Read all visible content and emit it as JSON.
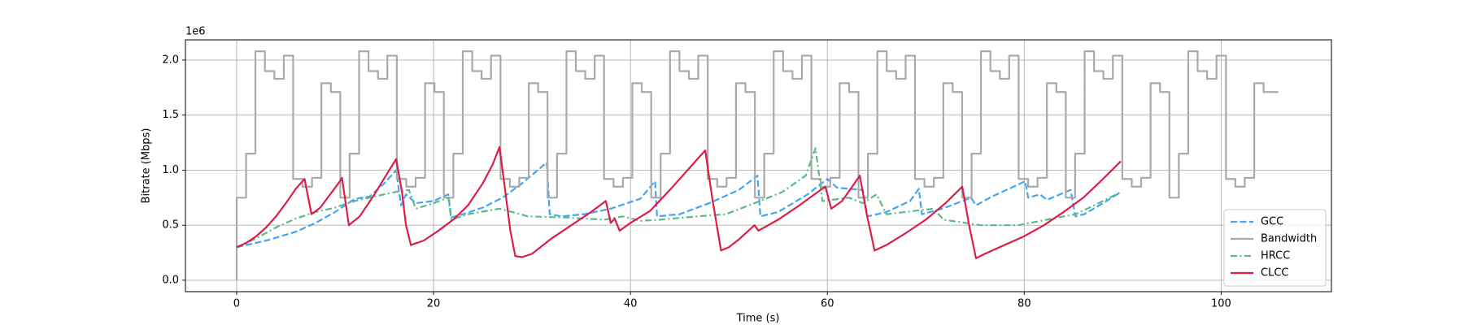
{
  "chart_data": {
    "type": "line",
    "xlabel": "Time (s)",
    "ylabel": "Bitrate (Mbps)",
    "y_offset_text": "1e6",
    "xlim": [
      -5.2,
      111.2
    ],
    "ylim": [
      -0.104,
      2.184
    ],
    "xticks": [
      0,
      20,
      40,
      60,
      80,
      100
    ],
    "yticks": [
      {
        "value": 0,
        "label": "0.0"
      },
      0.5,
      {
        "value": 1,
        "label": "1.0"
      },
      1.5,
      {
        "value": 2,
        "label": "2.0"
      }
    ],
    "grid": true,
    "legend": "lower right",
    "series": [
      {
        "name": "GCC",
        "color": "#42a5f5",
        "linestyle": "dashed",
        "x": [
          0,
          3,
          6,
          8,
          10,
          12,
          13.5,
          15,
          16.2,
          16.7,
          17.2,
          18.2,
          20,
          21.5,
          21.8,
          23,
          25,
          27,
          29,
          31.5,
          31.8,
          33,
          35.3,
          38,
          41,
          42.5,
          42.7,
          45,
          48,
          51,
          52.9,
          53.2,
          55,
          58,
          60,
          61,
          63.6,
          64.1,
          66,
          68.4,
          69.3,
          69.6,
          71.7,
          74.6,
          75.1,
          76.5,
          80.1,
          80.4,
          81.6,
          82.3,
          84.7,
          85.2,
          86.1,
          88,
          89.8
        ],
        "values": [
          0.3,
          0.36,
          0.44,
          0.52,
          0.62,
          0.74,
          0.76,
          0.88,
          1.0,
          0.68,
          0.78,
          0.7,
          0.72,
          0.78,
          0.57,
          0.6,
          0.66,
          0.75,
          0.88,
          1.07,
          0.6,
          0.58,
          0.6,
          0.65,
          0.74,
          0.9,
          0.58,
          0.6,
          0.7,
          0.82,
          0.95,
          0.58,
          0.62,
          0.78,
          0.92,
          0.84,
          0.82,
          0.58,
          0.62,
          0.72,
          0.83,
          0.6,
          0.65,
          0.75,
          0.68,
          0.75,
          0.9,
          0.75,
          0.78,
          0.73,
          0.82,
          0.58,
          0.6,
          0.7,
          0.8
        ]
      },
      {
        "name": "Bandwidth",
        "color": "#aaaaaa",
        "linestyle": "solid",
        "drawstyle": "steps-post",
        "x": [
          0,
          0,
          0.96,
          1.91,
          2.87,
          3.83,
          4.79,
          5.74,
          6.7,
          7.66,
          8.61,
          9.57,
          10.53,
          11.48,
          12.44,
          13.4,
          14.36,
          15.31,
          16.27,
          17.23,
          18.18,
          19.14,
          20.1,
          21.05,
          22.01,
          22.97,
          23.93,
          24.88,
          25.84,
          26.8,
          27.75,
          28.71,
          29.67,
          30.62,
          31.58,
          32.54,
          33.5,
          34.45,
          35.41,
          36.37,
          37.32,
          38.28,
          39.24,
          40.19,
          41.15,
          42.11,
          43.07,
          44.02,
          44.98,
          45.94,
          46.89,
          47.85,
          48.81,
          49.76,
          50.72,
          51.68,
          52.64,
          53.59,
          54.55,
          55.51,
          56.46,
          57.42,
          58.38,
          59.33,
          60.29,
          61.25,
          62.21,
          63.16,
          64.12,
          65.08,
          66.03,
          66.99,
          67.95,
          68.9,
          69.86,
          70.82,
          71.78,
          72.73,
          73.69,
          74.65,
          75.6,
          76.56,
          77.52,
          78.47,
          79.43,
          80.39,
          81.35,
          82.3,
          83.26,
          84.22,
          85.17,
          86.13,
          87.09,
          88.04,
          89.0,
          89.96,
          90.92,
          91.87,
          92.83,
          93.79,
          94.74,
          95.7,
          96.66,
          97.61,
          98.57,
          99.53,
          100.49,
          101.44,
          102.4,
          103.36,
          104.31,
          105.8
        ],
        "values": [
          0,
          0.75,
          1.15,
          2.08,
          1.9,
          1.83,
          2.04,
          0.92,
          0.85,
          0.93,
          1.79,
          1.71,
          0.75,
          1.15,
          2.08,
          1.9,
          1.83,
          2.04,
          0.92,
          0.85,
          0.93,
          1.79,
          1.71,
          0.75,
          1.15,
          2.08,
          1.9,
          1.83,
          2.04,
          0.92,
          0.85,
          0.93,
          1.79,
          1.71,
          0.75,
          1.15,
          2.08,
          1.9,
          1.83,
          2.04,
          0.92,
          0.85,
          0.93,
          1.79,
          1.71,
          0.75,
          1.15,
          2.08,
          1.9,
          1.83,
          2.04,
          0.92,
          0.85,
          0.93,
          1.79,
          1.71,
          0.75,
          1.15,
          2.08,
          1.9,
          1.83,
          2.04,
          0.92,
          0.85,
          0.93,
          1.79,
          1.71,
          0.75,
          1.15,
          2.08,
          1.9,
          1.83,
          2.04,
          0.92,
          0.85,
          0.93,
          1.79,
          1.71,
          0.75,
          1.15,
          2.08,
          1.9,
          1.83,
          2.04,
          0.92,
          0.85,
          0.93,
          1.79,
          1.71,
          0.75,
          1.15,
          2.08,
          1.9,
          1.83,
          2.04,
          0.92,
          0.85,
          0.93,
          1.79,
          1.71,
          0.75,
          1.15,
          2.08,
          1.9,
          1.83,
          2.04,
          0.92,
          0.85,
          0.93,
          1.79,
          1.71,
          1.71
        ]
      },
      {
        "name": "HRCC",
        "color": "#5cba85",
        "linestyle": "dashdot",
        "x": [
          0,
          2,
          4,
          6,
          8,
          10,
          12,
          14,
          16,
          17.5,
          18.2,
          20,
          21.5,
          21.8,
          23.5,
          26.7,
          29.6,
          33.4,
          37.3,
          39.2,
          41,
          43,
          46.8,
          49.7,
          52.6,
          55.4,
          57.8,
          58.8,
          59.5,
          62.2,
          63.6,
          65,
          66,
          67.9,
          70.8,
          71.8,
          75.6,
          79.4,
          82.3,
          85.2,
          87.1,
          89.8
        ],
        "values": [
          0.3,
          0.38,
          0.48,
          0.56,
          0.62,
          0.66,
          0.72,
          0.76,
          0.8,
          0.82,
          0.65,
          0.7,
          0.75,
          0.55,
          0.6,
          0.65,
          0.58,
          0.57,
          0.55,
          0.58,
          0.54,
          0.55,
          0.58,
          0.6,
          0.7,
          0.8,
          0.95,
          1.2,
          0.72,
          0.75,
          0.7,
          0.78,
          0.6,
          0.62,
          0.65,
          0.55,
          0.5,
          0.5,
          0.55,
          0.6,
          0.68,
          0.8
        ]
      },
      {
        "name": "CLCC",
        "color": "#dc1e46",
        "linestyle": "solid",
        "x": [
          0,
          1,
          2,
          3,
          4,
          5,
          6,
          6.9,
          7.6,
          8.5,
          9.5,
          10.5,
          10.7,
          11.4,
          12.5,
          14,
          15.5,
          16.2,
          16.8,
          17.2,
          17.7,
          19,
          20.5,
          22,
          23.5,
          25,
          26,
          26.7,
          27.3,
          27.8,
          28.3,
          29,
          30,
          32,
          34,
          36,
          37.5,
          38,
          38.4,
          38.9,
          40,
          42,
          44,
          46,
          47.6,
          48.3,
          49.2,
          50,
          51,
          52.6,
          53,
          55,
          57,
          59,
          59.8,
          60.4,
          61.5,
          63.3,
          64,
          64.8,
          66,
          68,
          70,
          72,
          73.7,
          74.4,
          75.1,
          76,
          78,
          80,
          82,
          84,
          86,
          88,
          89.8
        ],
        "values": [
          0.3,
          0.34,
          0.4,
          0.48,
          0.58,
          0.7,
          0.83,
          0.92,
          0.6,
          0.66,
          0.78,
          0.9,
          0.93,
          0.5,
          0.58,
          0.78,
          1.0,
          1.1,
          0.8,
          0.5,
          0.32,
          0.36,
          0.45,
          0.55,
          0.68,
          0.88,
          1.05,
          1.21,
          0.8,
          0.45,
          0.22,
          0.21,
          0.24,
          0.38,
          0.5,
          0.62,
          0.72,
          0.52,
          0.56,
          0.45,
          0.52,
          0.63,
          0.82,
          1.02,
          1.18,
          0.75,
          0.27,
          0.3,
          0.37,
          0.5,
          0.45,
          0.55,
          0.67,
          0.8,
          0.85,
          0.65,
          0.72,
          0.95,
          0.6,
          0.27,
          0.32,
          0.43,
          0.55,
          0.7,
          0.85,
          0.5,
          0.2,
          0.24,
          0.32,
          0.4,
          0.5,
          0.62,
          0.75,
          0.92,
          1.08
        ]
      }
    ]
  }
}
